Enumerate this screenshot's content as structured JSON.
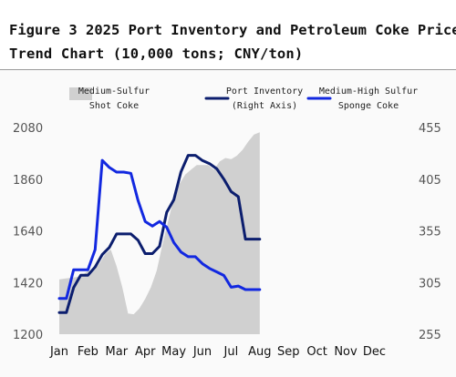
{
  "title_line1": "Figure 3 2025 Port Inventory and Petroleum Coke Price",
  "title_line2": "Trend Chart (10,000 tons; CNY/ton)",
  "chart_data": {
    "type": "line",
    "categories": [
      "Jan",
      "Feb",
      "Mar",
      "Apr",
      "May",
      "Jun",
      "Jul",
      "Aug",
      "Sep",
      "Oct",
      "Nov",
      "Dec"
    ],
    "left_axis": {
      "range": [
        1200,
        2080
      ],
      "ticks": [
        1200,
        1420,
        1640,
        1860,
        2080
      ]
    },
    "right_axis": {
      "range": [
        255,
        455
      ],
      "ticks": [
        255,
        305,
        355,
        405,
        455
      ]
    },
    "legend": {
      "placement": "top",
      "entries": [
        {
          "label_lines": [
            "Medium-Sulfur",
            "Shot Coke"
          ],
          "color": "#d0d0d0",
          "kind": "area"
        },
        {
          "label_lines": [
            "Port Inventory",
            "(Right Axis)"
          ],
          "color": "#0c1e6e",
          "kind": "line"
        },
        {
          "label_lines": [
            "Medium-High Sulfur",
            "Sponge Coke"
          ],
          "color": "#1228e0",
          "kind": "line"
        }
      ]
    },
    "series": [
      {
        "name": "Medium-Sulfur Shot Coke",
        "axis": "left",
        "type": "area",
        "color": "#d0d0d0",
        "x": [
          0.0,
          0.2,
          0.4,
          0.6,
          0.8,
          1.0,
          1.2,
          1.4,
          1.6,
          1.8,
          2.0,
          2.2,
          2.4,
          2.6,
          2.8,
          3.0,
          3.2,
          3.4,
          3.6,
          3.8,
          4.0,
          4.2,
          4.4,
          4.6,
          4.8,
          5.0,
          5.2,
          5.4,
          5.6,
          5.8,
          6.0,
          6.2,
          6.4,
          6.6,
          6.8,
          7.0
        ],
        "values": [
          1433,
          1437,
          1440,
          1443,
          1450,
          1470,
          1472,
          1500,
          1540,
          1560,
          1490,
          1400,
          1288,
          1285,
          1310,
          1350,
          1400,
          1470,
          1580,
          1680,
          1780,
          1840,
          1880,
          1900,
          1920,
          1920,
          1920,
          1900,
          1935,
          1950,
          1945,
          1960,
          1985,
          2020,
          2050,
          2060
        ]
      },
      {
        "name": "Port Inventory (Right Axis)",
        "axis": "right",
        "type": "line",
        "color": "#0c1e6e",
        "x": [
          0.0,
          0.25,
          0.5,
          0.75,
          1.0,
          1.25,
          1.5,
          1.75,
          2.0,
          2.25,
          2.5,
          2.75,
          3.0,
          3.25,
          3.5,
          3.75,
          4.0,
          4.25,
          4.5,
          4.75,
          5.0,
          5.25,
          5.5,
          5.75,
          6.0,
          6.25,
          6.5,
          6.75,
          7.0
        ],
        "values": [
          276,
          276,
          300,
          312,
          312,
          320,
          332,
          339,
          352,
          352,
          352,
          346,
          333,
          333,
          340,
          373,
          385,
          412,
          428,
          428,
          423,
          420,
          415,
          405,
          393,
          388,
          347,
          347,
          347
        ]
      },
      {
        "name": "Medium-High Sulfur Sponge Coke",
        "axis": "left",
        "type": "line",
        "color": "#1228e0",
        "x": [
          0.0,
          0.25,
          0.5,
          0.75,
          1.0,
          1.25,
          1.5,
          1.75,
          2.0,
          2.25,
          2.5,
          2.75,
          3.0,
          3.25,
          3.5,
          3.75,
          4.0,
          4.25,
          4.5,
          4.75,
          5.0,
          5.25,
          5.5,
          5.75,
          6.0,
          6.25,
          6.5,
          6.75,
          7.0
        ],
        "values": [
          1352,
          1352,
          1474,
          1474,
          1474,
          1560,
          1940,
          1910,
          1890,
          1890,
          1885,
          1770,
          1680,
          1660,
          1680,
          1655,
          1590,
          1550,
          1530,
          1530,
          1500,
          1480,
          1465,
          1450,
          1400,
          1405,
          1390,
          1390,
          1390
        ]
      }
    ]
  }
}
